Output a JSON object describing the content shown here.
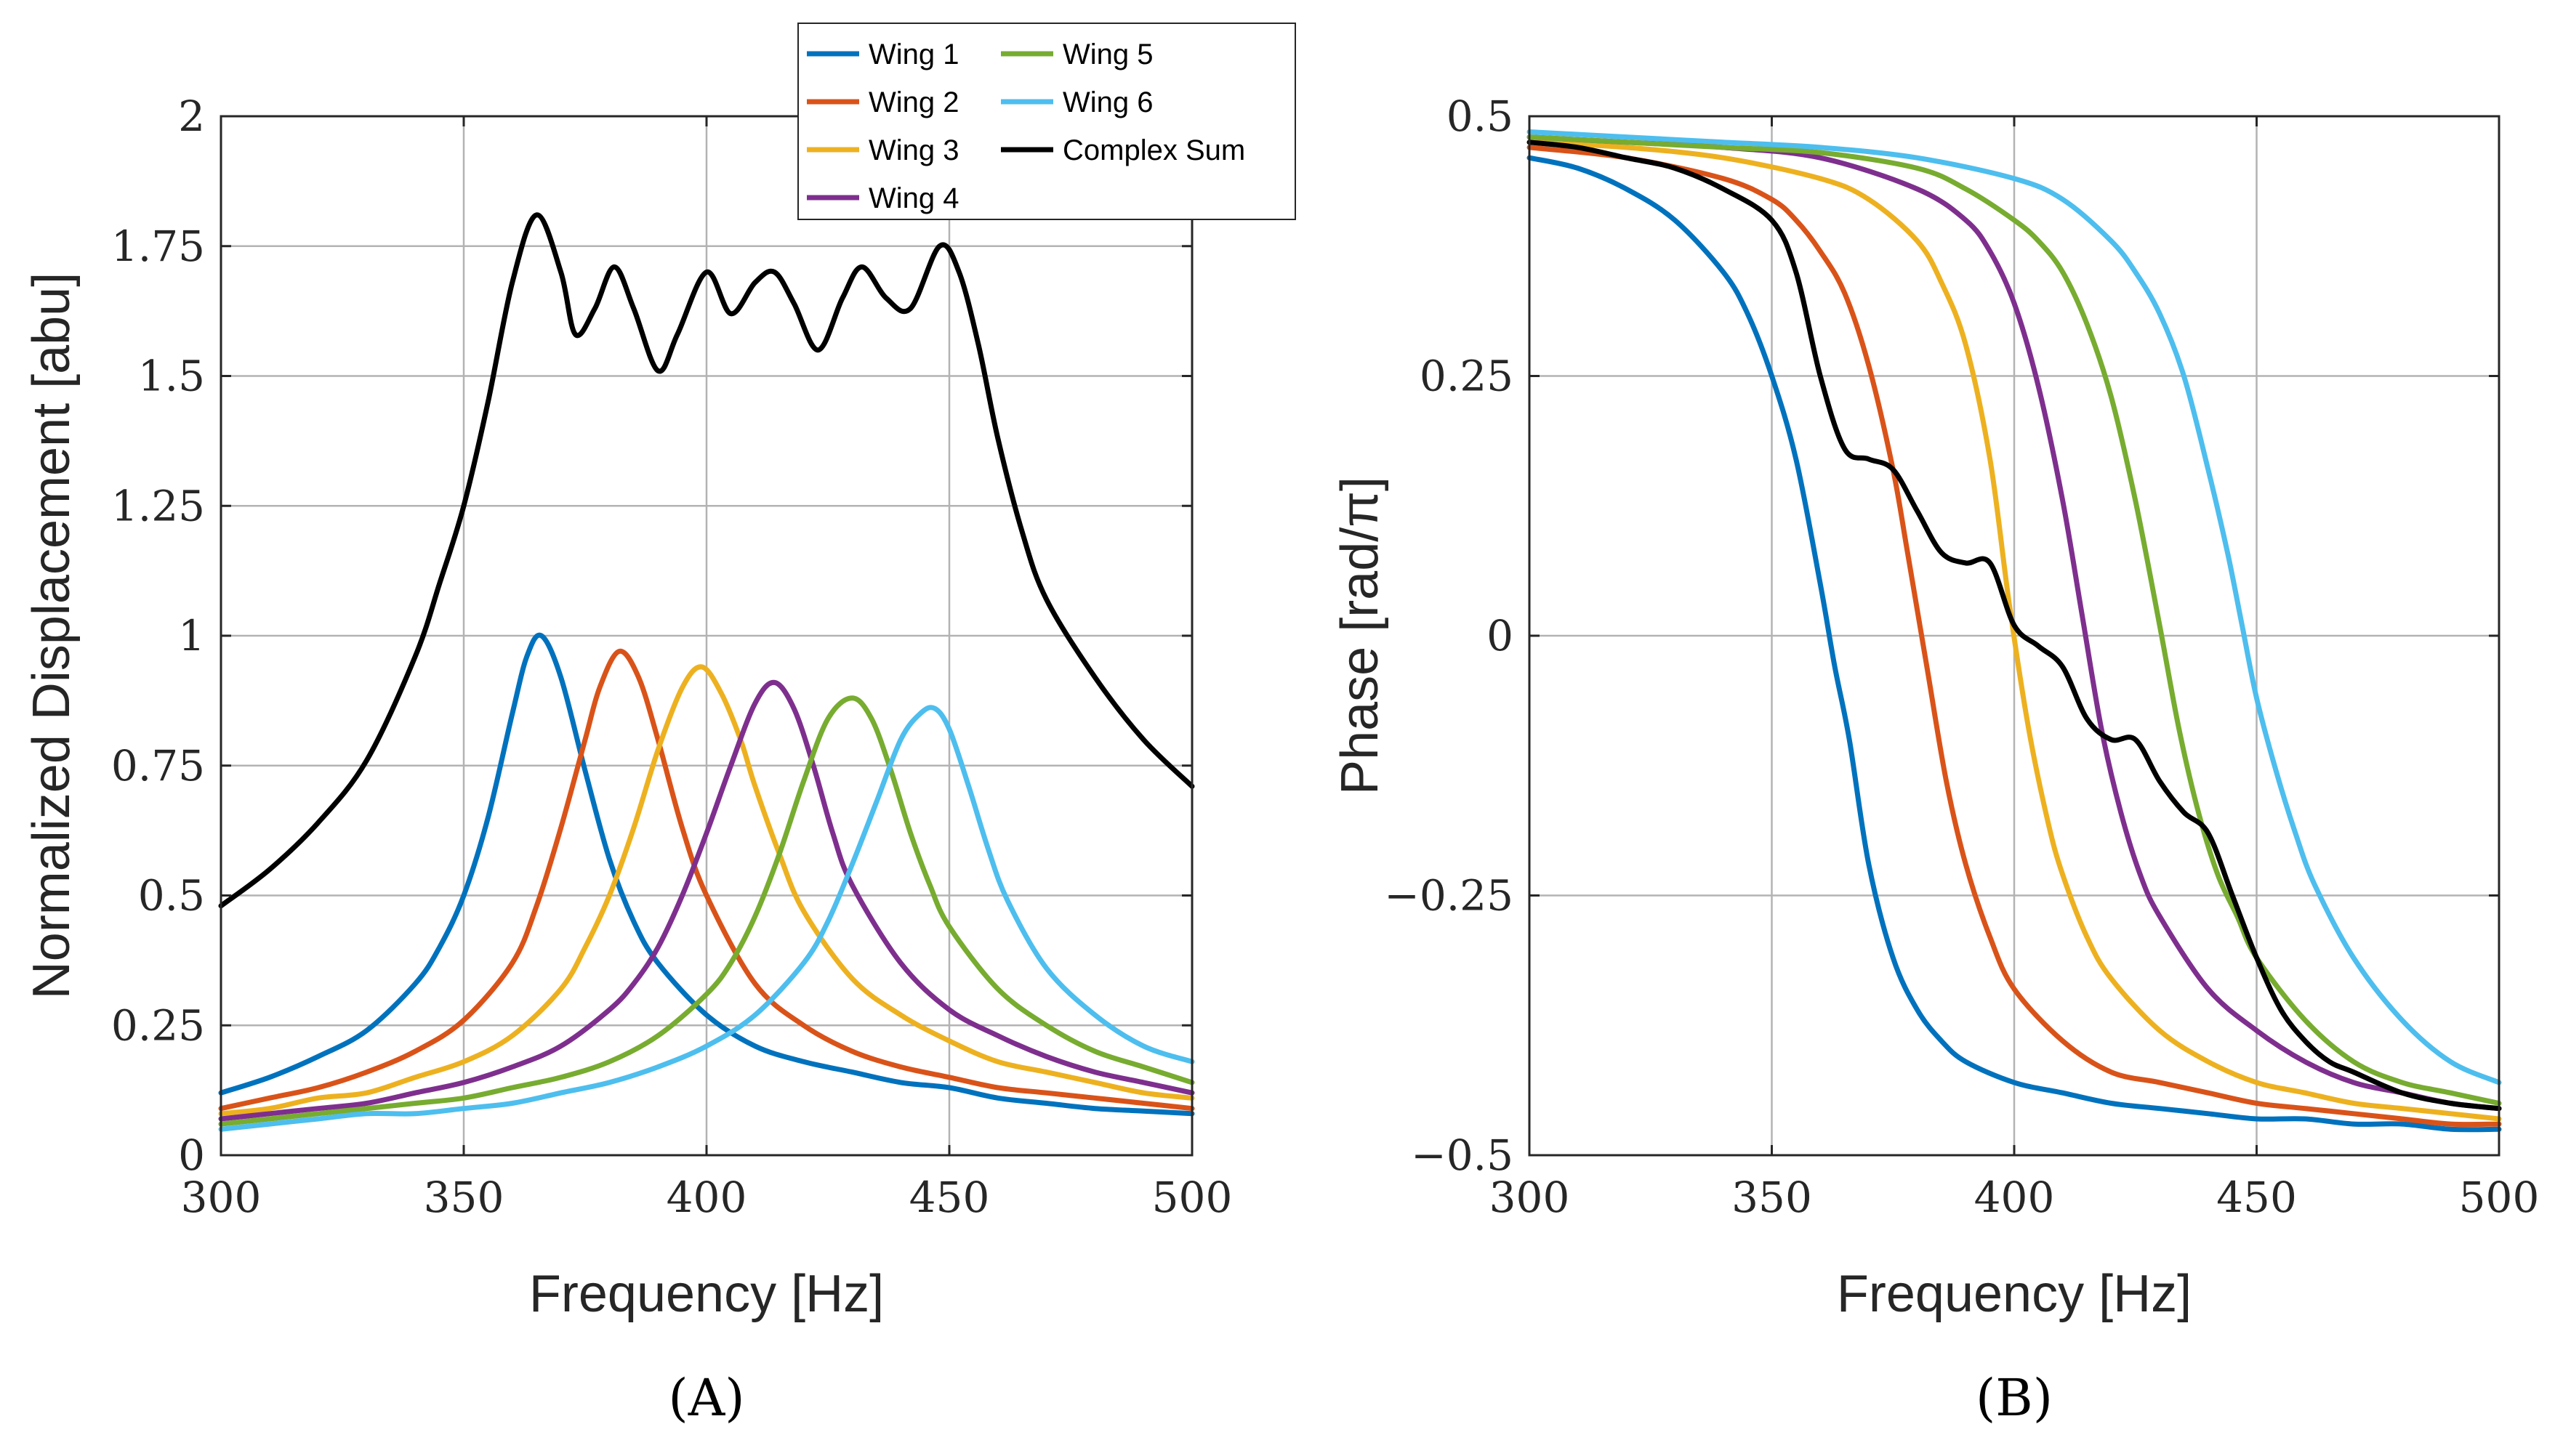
{
  "chart_data": [
    {
      "type": "line",
      "panel_label": "(A)",
      "xlabel": "Frequency [Hz]",
      "ylabel": "Normalized Displacement [abu]",
      "xlim": [
        300,
        500
      ],
      "ylim": [
        0,
        2
      ],
      "xticks": [
        300,
        350,
        400,
        450,
        500
      ],
      "xtick_labels": [
        "300",
        "350",
        "400",
        "450",
        "500"
      ],
      "yticks": [
        0,
        0.25,
        0.5,
        0.75,
        1,
        1.25,
        1.5,
        1.75,
        2
      ],
      "ytick_labels": [
        "0",
        "0.25",
        "0.5",
        "0.75",
        "1",
        "1.25",
        "1.5",
        "1.75",
        "2"
      ],
      "grid": true,
      "legend_position": "top-right, outside plot area (2 columns)",
      "series": [
        {
          "name": "Wing 1",
          "color": "#0072BD",
          "x": [
            300,
            310,
            320,
            330,
            340,
            345,
            350,
            355,
            360,
            363,
            366,
            370,
            375,
            380,
            385,
            390,
            400,
            410,
            420,
            430,
            440,
            450,
            460,
            470,
            480,
            490,
            500
          ],
          "y": [
            0.12,
            0.15,
            0.19,
            0.24,
            0.33,
            0.4,
            0.5,
            0.65,
            0.85,
            0.96,
            1.0,
            0.92,
            0.74,
            0.57,
            0.45,
            0.37,
            0.27,
            0.21,
            0.18,
            0.16,
            0.14,
            0.13,
            0.11,
            0.1,
            0.09,
            0.085,
            0.08
          ]
        },
        {
          "name": "Wing 2",
          "color": "#D95319",
          "x": [
            300,
            310,
            320,
            330,
            340,
            350,
            360,
            365,
            370,
            375,
            378,
            382,
            386,
            390,
            395,
            400,
            410,
            420,
            430,
            440,
            450,
            460,
            470,
            480,
            490,
            500
          ],
          "y": [
            0.09,
            0.11,
            0.13,
            0.16,
            0.2,
            0.26,
            0.37,
            0.48,
            0.63,
            0.8,
            0.9,
            0.97,
            0.92,
            0.8,
            0.63,
            0.5,
            0.33,
            0.25,
            0.2,
            0.17,
            0.15,
            0.13,
            0.12,
            0.11,
            0.1,
            0.09
          ]
        },
        {
          "name": "Wing 3",
          "color": "#EDB120",
          "x": [
            300,
            310,
            320,
            330,
            340,
            350,
            360,
            370,
            375,
            380,
            385,
            390,
            395,
            399,
            403,
            407,
            410,
            415,
            420,
            430,
            440,
            450,
            460,
            470,
            480,
            490,
            500
          ],
          "y": [
            0.08,
            0.09,
            0.11,
            0.12,
            0.15,
            0.18,
            0.23,
            0.32,
            0.4,
            0.5,
            0.63,
            0.78,
            0.9,
            0.94,
            0.89,
            0.8,
            0.71,
            0.58,
            0.47,
            0.34,
            0.27,
            0.22,
            0.18,
            0.16,
            0.14,
            0.12,
            0.11
          ]
        },
        {
          "name": "Wing 4",
          "color": "#7E2F8E",
          "x": [
            300,
            310,
            320,
            330,
            340,
            350,
            360,
            370,
            380,
            385,
            390,
            395,
            400,
            405,
            410,
            414,
            418,
            422,
            426,
            430,
            440,
            450,
            460,
            470,
            480,
            490,
            500
          ],
          "y": [
            0.07,
            0.08,
            0.09,
            0.1,
            0.12,
            0.14,
            0.17,
            0.21,
            0.28,
            0.33,
            0.4,
            0.5,
            0.62,
            0.75,
            0.87,
            0.91,
            0.86,
            0.75,
            0.62,
            0.52,
            0.37,
            0.28,
            0.23,
            0.19,
            0.16,
            0.14,
            0.12
          ]
        },
        {
          "name": "Wing 5",
          "color": "#77AC30",
          "x": [
            300,
            310,
            320,
            330,
            340,
            350,
            360,
            370,
            380,
            390,
            400,
            405,
            410,
            415,
            420,
            425,
            430,
            434,
            438,
            442,
            446,
            450,
            460,
            470,
            480,
            490,
            500
          ],
          "y": [
            0.06,
            0.07,
            0.08,
            0.09,
            0.1,
            0.11,
            0.13,
            0.15,
            0.18,
            0.23,
            0.31,
            0.37,
            0.46,
            0.58,
            0.72,
            0.84,
            0.88,
            0.84,
            0.74,
            0.62,
            0.52,
            0.44,
            0.32,
            0.25,
            0.2,
            0.17,
            0.14
          ]
        },
        {
          "name": "Wing 6",
          "color": "#4DBEEE",
          "x": [
            300,
            310,
            320,
            330,
            340,
            350,
            360,
            370,
            380,
            390,
            400,
            410,
            420,
            425,
            430,
            435,
            440,
            444,
            447,
            450,
            454,
            458,
            462,
            470,
            480,
            490,
            500
          ],
          "y": [
            0.05,
            0.06,
            0.07,
            0.08,
            0.08,
            0.09,
            0.1,
            0.12,
            0.14,
            0.17,
            0.21,
            0.27,
            0.37,
            0.45,
            0.56,
            0.68,
            0.8,
            0.85,
            0.86,
            0.82,
            0.71,
            0.59,
            0.49,
            0.36,
            0.27,
            0.21,
            0.18
          ]
        },
        {
          "name": "Complex Sum",
          "color": "#000000",
          "x": [
            300,
            310,
            320,
            330,
            340,
            345,
            350,
            355,
            360,
            365,
            370,
            373,
            377,
            381,
            385,
            390,
            394,
            400,
            405,
            410,
            414,
            418,
            423,
            428,
            432,
            437,
            442,
            448,
            452,
            456,
            460,
            465,
            470,
            480,
            490,
            500
          ],
          "y": [
            0.48,
            0.55,
            0.64,
            0.76,
            0.96,
            1.1,
            1.25,
            1.45,
            1.68,
            1.81,
            1.7,
            1.58,
            1.63,
            1.71,
            1.63,
            1.51,
            1.58,
            1.7,
            1.62,
            1.68,
            1.7,
            1.64,
            1.55,
            1.65,
            1.71,
            1.65,
            1.63,
            1.75,
            1.7,
            1.56,
            1.38,
            1.2,
            1.07,
            0.92,
            0.8,
            0.71
          ]
        }
      ]
    },
    {
      "type": "line",
      "panel_label": "(B)",
      "xlabel": "Frequency [Hz]",
      "ylabel": "Phase [rad/π]",
      "xlim": [
        300,
        500
      ],
      "ylim": [
        -0.5,
        0.5
      ],
      "xticks": [
        300,
        350,
        400,
        450,
        500
      ],
      "xtick_labels": [
        "300",
        "350",
        "400",
        "450",
        "500"
      ],
      "yticks": [
        -0.5,
        -0.25,
        0,
        0.25,
        0.5
      ],
      "ytick_labels": [
        "−0.5",
        "−0.25",
        "0",
        "0.25",
        "0.5"
      ],
      "grid": true,
      "series": [
        {
          "name": "Wing 1",
          "color": "#0072BD",
          "x": [
            300,
            310,
            320,
            330,
            340,
            345,
            350,
            355,
            360,
            363,
            366,
            370,
            375,
            380,
            385,
            390,
            400,
            410,
            420,
            430,
            440,
            450,
            460,
            470,
            480,
            490,
            500
          ],
          "y": [
            0.46,
            0.45,
            0.43,
            0.4,
            0.35,
            0.31,
            0.25,
            0.17,
            0.05,
            -0.03,
            -0.1,
            -0.22,
            -0.31,
            -0.36,
            -0.39,
            -0.41,
            -0.43,
            -0.44,
            -0.45,
            -0.455,
            -0.46,
            -0.465,
            -0.465,
            -0.47,
            -0.47,
            -0.475,
            -0.475
          ]
        },
        {
          "name": "Wing 2",
          "color": "#D95319",
          "x": [
            300,
            320,
            340,
            350,
            355,
            360,
            365,
            370,
            375,
            378,
            382,
            386,
            390,
            395,
            400,
            410,
            420,
            430,
            440,
            450,
            460,
            470,
            480,
            490,
            500
          ],
          "y": [
            0.47,
            0.46,
            0.44,
            0.42,
            0.4,
            0.37,
            0.33,
            0.26,
            0.16,
            0.08,
            -0.03,
            -0.14,
            -0.22,
            -0.29,
            -0.34,
            -0.39,
            -0.42,
            -0.43,
            -0.44,
            -0.45,
            -0.455,
            -0.46,
            -0.465,
            -0.47,
            -0.47
          ]
        },
        {
          "name": "Wing 3",
          "color": "#EDB120",
          "x": [
            300,
            320,
            340,
            360,
            370,
            380,
            385,
            390,
            395,
            399,
            403,
            407,
            410,
            415,
            420,
            430,
            440,
            450,
            460,
            470,
            480,
            490,
            500
          ],
          "y": [
            0.475,
            0.47,
            0.46,
            0.44,
            0.42,
            0.38,
            0.34,
            0.28,
            0.17,
            0.03,
            -0.09,
            -0.18,
            -0.23,
            -0.29,
            -0.33,
            -0.38,
            -0.41,
            -0.43,
            -0.44,
            -0.45,
            -0.455,
            -0.46,
            -0.465
          ]
        },
        {
          "name": "Wing 4",
          "color": "#7E2F8E",
          "x": [
            300,
            320,
            340,
            360,
            380,
            390,
            395,
            400,
            405,
            410,
            414,
            418,
            422,
            426,
            430,
            440,
            450,
            460,
            470,
            480,
            490,
            500
          ],
          "y": [
            0.48,
            0.475,
            0.47,
            0.46,
            0.43,
            0.4,
            0.37,
            0.32,
            0.24,
            0.13,
            0.02,
            -0.09,
            -0.17,
            -0.23,
            -0.27,
            -0.34,
            -0.38,
            -0.41,
            -0.43,
            -0.44,
            -0.45,
            -0.455
          ]
        },
        {
          "name": "Wing 5",
          "color": "#77AC30",
          "x": [
            300,
            320,
            340,
            360,
            380,
            390,
            400,
            405,
            410,
            415,
            420,
            425,
            430,
            434,
            438,
            442,
            446,
            450,
            460,
            470,
            480,
            490,
            500
          ],
          "y": [
            0.48,
            0.475,
            0.47,
            0.465,
            0.45,
            0.43,
            0.4,
            0.38,
            0.35,
            0.3,
            0.23,
            0.13,
            0.01,
            -0.09,
            -0.17,
            -0.23,
            -0.27,
            -0.31,
            -0.37,
            -0.41,
            -0.43,
            -0.44,
            -0.45
          ]
        },
        {
          "name": "Wing 6",
          "color": "#4DBEEE",
          "x": [
            300,
            320,
            340,
            360,
            380,
            400,
            410,
            420,
            425,
            430,
            435,
            440,
            444,
            447,
            450,
            454,
            458,
            462,
            470,
            480,
            490,
            500
          ],
          "y": [
            0.485,
            0.48,
            0.475,
            0.47,
            0.46,
            0.44,
            0.42,
            0.38,
            0.35,
            0.31,
            0.25,
            0.16,
            0.08,
            0.01,
            -0.06,
            -0.13,
            -0.19,
            -0.24,
            -0.31,
            -0.37,
            -0.41,
            -0.43
          ]
        },
        {
          "name": "Complex Sum",
          "color": "#000000",
          "x": [
            300,
            310,
            320,
            330,
            340,
            350,
            355,
            360,
            365,
            370,
            375,
            380,
            385,
            390,
            395,
            400,
            405,
            410,
            415,
            420,
            425,
            430,
            435,
            440,
            445,
            450,
            455,
            460,
            465,
            470,
            480,
            490,
            500
          ],
          "y": [
            0.475,
            0.47,
            0.46,
            0.45,
            0.43,
            0.4,
            0.35,
            0.25,
            0.18,
            0.17,
            0.16,
            0.12,
            0.08,
            0.07,
            0.07,
            0.01,
            -0.01,
            -0.03,
            -0.08,
            -0.1,
            -0.1,
            -0.14,
            -0.17,
            -0.19,
            -0.25,
            -0.31,
            -0.36,
            -0.39,
            -0.41,
            -0.42,
            -0.44,
            -0.45,
            -0.455
          ]
        }
      ]
    }
  ]
}
